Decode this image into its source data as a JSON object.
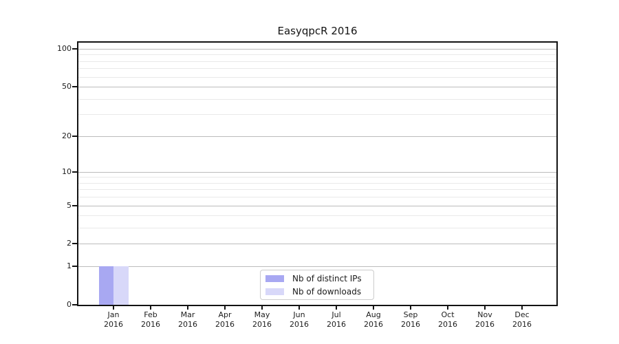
{
  "chart_data": {
    "type": "bar",
    "title": "EasyqpcR 2016",
    "categories": [
      "Jan 2016",
      "Feb 2016",
      "Mar 2016",
      "Apr 2016",
      "May 2016",
      "Jun 2016",
      "Jul 2016",
      "Aug 2016",
      "Sep 2016",
      "Oct 2016",
      "Nov 2016",
      "Dec 2016"
    ],
    "series": [
      {
        "name": "Nb of distinct IPs",
        "color": "#a8a8f2",
        "values": [
          1,
          0,
          0,
          0,
          0,
          0,
          0,
          0,
          0,
          0,
          0,
          0
        ]
      },
      {
        "name": "Nb of downloads",
        "color": "#d8d8f9",
        "values": [
          1,
          0,
          0,
          0,
          0,
          0,
          0,
          0,
          0,
          0,
          0,
          0
        ]
      }
    ],
    "xlabel": "",
    "ylabel": "",
    "yscale": "log1p",
    "ylim": [
      0,
      112
    ],
    "y_ticks": [
      {
        "value": 100,
        "label": "100"
      },
      {
        "value": 50,
        "label": "50"
      },
      {
        "value": 20,
        "label": "20"
      },
      {
        "value": 10,
        "label": "10"
      },
      {
        "value": 5,
        "label": "5"
      },
      {
        "value": 2,
        "label": "2"
      },
      {
        "value": 1,
        "label": "1"
      },
      {
        "value": 0,
        "label": "0"
      }
    ],
    "y_major_gridlines": [
      1,
      2,
      5,
      10,
      20,
      50,
      100
    ],
    "y_minor_gridlines": [
      3,
      4,
      6,
      7,
      8,
      9,
      30,
      40,
      60,
      70,
      80,
      90
    ],
    "grid": true,
    "legend_position": "lower center",
    "colors": {
      "background": "#ffffff",
      "spine": "#121212",
      "grid_major": "#bbbbbb",
      "grid_minor": "#e9e9e9",
      "legend_border": "#cccccc",
      "text": "#1a1a1a"
    }
  }
}
